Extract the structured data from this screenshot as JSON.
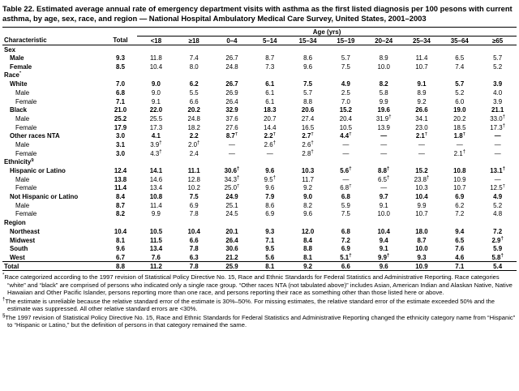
{
  "page": {
    "title": "Table 22. Estimated average annual rate of emergency department visits with asthma as the first listed diagnosis per 100 pesons with current asthma, by age, sex, race, and region — National Hospital Ambulatory Medical Care Survey, United States, 2001–2003"
  },
  "table": {
    "age_group_label": "Age (yrs)",
    "columns": [
      "Characteristic",
      "Total",
      "<18",
      "≥18",
      "0–4",
      "5–14",
      "15–34",
      "15–19",
      "20–24",
      "25–34",
      "35–64",
      "≥65"
    ],
    "missing_symbol": "—",
    "rows": [
      {
        "label": "Sex",
        "section": true,
        "indent": 0
      },
      {
        "label": "Male",
        "indent": 1,
        "labelBold": true,
        "values": [
          "9.3",
          "11.8",
          "7.4",
          "26.7",
          "8.7",
          "8.6",
          "5.7",
          "8.9",
          "11.4",
          "6.5",
          "5.7"
        ]
      },
      {
        "label": "Female",
        "indent": 1,
        "labelBold": true,
        "values": [
          "8.5",
          "10.4",
          "8.0",
          "24.8",
          "7.3",
          "9.6",
          "7.5",
          "10.0",
          "10.7",
          "7.4",
          "5.2"
        ]
      },
      {
        "label": "Race*",
        "section": true,
        "indent": 0
      },
      {
        "label": "White",
        "indent": 1,
        "bold": true,
        "values": [
          "7.0",
          "9.0",
          "6.2",
          "26.7",
          "6.1",
          "7.5",
          "4.9",
          "8.2",
          "9.1",
          "5.7",
          "3.9"
        ]
      },
      {
        "label": "Male",
        "indent": 2,
        "values": [
          "6.8",
          "9.0",
          "5.5",
          "26.9",
          "6.1",
          "5.7",
          "2.5",
          "5.8",
          "8.9",
          "5.2",
          "4.0"
        ]
      },
      {
        "label": "Female",
        "indent": 2,
        "values": [
          "7.1",
          "9.1",
          "6.6",
          "26.4",
          "6.1",
          "8.8",
          "7.0",
          "9.9",
          "9.2",
          "6.0",
          "3.9"
        ]
      },
      {
        "label": "Black",
        "indent": 1,
        "bold": true,
        "values": [
          "21.0",
          "22.0",
          "20.2",
          "32.9",
          "18.3",
          "20.6",
          "15.2",
          "19.6",
          "26.6",
          "19.0",
          "21.1"
        ]
      },
      {
        "label": "Male",
        "indent": 2,
        "values": [
          "25.2",
          "25.5",
          "24.8",
          "37.6",
          "20.7",
          "27.4",
          "20.4",
          "31.9†",
          "34.1",
          "20.2",
          "33.0†"
        ]
      },
      {
        "label": "Female",
        "indent": 2,
        "values": [
          "17.9",
          "17.3",
          "18.2",
          "27.6",
          "14.4",
          "16.5",
          "10.5",
          "13.9",
          "23.0",
          "18.5",
          "17.3†"
        ]
      },
      {
        "label": "Other races NTA",
        "indent": 1,
        "bold": true,
        "values": [
          "3.0",
          "4.1",
          "2.2",
          "8.7†",
          "2.2†",
          "2.7†",
          "4.4†",
          "—",
          "2.1†",
          "1.8†",
          "—"
        ]
      },
      {
        "label": "Male",
        "indent": 2,
        "values": [
          "3.1",
          "3.9†",
          "2.0†",
          "—",
          "2.6†",
          "2.6†",
          "—",
          "—",
          "—",
          "—",
          "—"
        ]
      },
      {
        "label": "Female",
        "indent": 2,
        "values": [
          "3.0",
          "4.3†",
          "2.4",
          "—",
          "—",
          "2.8†",
          "—",
          "—",
          "—",
          "2.1†",
          "—"
        ]
      },
      {
        "label": "Ethnicity§",
        "section": true,
        "indent": 0
      },
      {
        "label": "Hispanic or Latino",
        "indent": 1,
        "bold": true,
        "values": [
          "12.4",
          "14.1",
          "11.1",
          "30.6†",
          "9.6",
          "10.3",
          "5.6†",
          "8.8†",
          "15.2",
          "10.8",
          "13.1†"
        ]
      },
      {
        "label": "Male",
        "indent": 2,
        "values": [
          "13.8",
          "14.6",
          "12.8",
          "34.3†",
          "9.5†",
          "11.7",
          "—",
          "6.5†",
          "23.8†",
          "10.9",
          "—"
        ]
      },
      {
        "label": "Female",
        "indent": 2,
        "values": [
          "11.4",
          "13.4",
          "10.2",
          "25.0†",
          "9.6",
          "9.2",
          "6.8†",
          "—",
          "10.3",
          "10.7",
          "12.5†"
        ]
      },
      {
        "label": "Not Hispanic or Latino",
        "indent": 1,
        "bold": true,
        "values": [
          "8.4",
          "10.8",
          "7.5",
          "24.9",
          "7.9",
          "9.0",
          "6.8",
          "9.7",
          "10.4",
          "6.9",
          "4.9"
        ]
      },
      {
        "label": "Male",
        "indent": 2,
        "values": [
          "8.7",
          "11.4",
          "6.9",
          "25.1",
          "8.6",
          "8.2",
          "5.9",
          "9.1",
          "9.9",
          "6.2",
          "5.2"
        ]
      },
      {
        "label": "Female",
        "indent": 2,
        "values": [
          "8.2",
          "9.9",
          "7.8",
          "24.5",
          "6.9",
          "9.6",
          "7.5",
          "10.0",
          "10.7",
          "7.2",
          "4.8"
        ]
      },
      {
        "label": "Region",
        "section": true,
        "indent": 0
      },
      {
        "label": "Northeast",
        "indent": 1,
        "bold": true,
        "values": [
          "10.4",
          "10.5",
          "10.4",
          "20.1",
          "9.3",
          "12.0",
          "6.8",
          "10.4",
          "18.0",
          "9.4",
          "7.2"
        ]
      },
      {
        "label": "Midwest",
        "indent": 1,
        "bold": true,
        "values": [
          "8.1",
          "11.5",
          "6.6",
          "26.4",
          "7.1",
          "8.4",
          "7.2",
          "9.4",
          "8.7",
          "6.5",
          "2.9†"
        ]
      },
      {
        "label": "South",
        "indent": 1,
        "bold": true,
        "values": [
          "9.6",
          "13.4",
          "7.8",
          "30.6",
          "9.5",
          "8.8",
          "6.9",
          "9.1",
          "10.0",
          "7.6",
          "5.9"
        ]
      },
      {
        "label": "West",
        "indent": 1,
        "bold": true,
        "values": [
          "6.7",
          "7.6",
          "6.3",
          "21.2",
          "5.6",
          "8.1",
          "5.1†",
          "9.9†",
          "9.3",
          "4.6",
          "5.8†"
        ]
      },
      {
        "label": "Total",
        "indent": 0,
        "bold": true,
        "total": true,
        "values": [
          "8.8",
          "11.2",
          "7.8",
          "25.9",
          "8.1",
          "9.2",
          "6.6",
          "9.6",
          "10.9",
          "7.1",
          "5.4"
        ]
      }
    ]
  },
  "footnotes": [
    {
      "marker": "*",
      "text": "Race categorized according to the 1997 revision of Statistical Policy Directive No. 15, Race and Ethnic Standards for Federal Statistics and Administrative Reporting. Race categories “white” and “black” are comprised of persons who indicated only a single race group. “Other races NTA (not tabulated above)” includes Asian, American Indian and Alaskan Native, Native Hawaiian and Other Pacific Islander, persons reporting more than one race, and persons reporting their race as something other than those listed here or above."
    },
    {
      "marker": "†",
      "text": "The estimate is unreliable because the relative standard error of the estimate is 30%–50%. For missing estimates, the relative standard error of the estimate exceeded 50% and the estimate was suppressed. All other relative standard errors are <30%."
    },
    {
      "marker": "§",
      "text": "The 1997 revision of Statistical Policy Directive No. 15, Race and Ethnic Standards for Federal Statistics and Administrative Reporting changed the ethnicity category name from “Hispanic” to “Hispanic or Latino,” but the definition of persons in that category remained the same."
    }
  ]
}
